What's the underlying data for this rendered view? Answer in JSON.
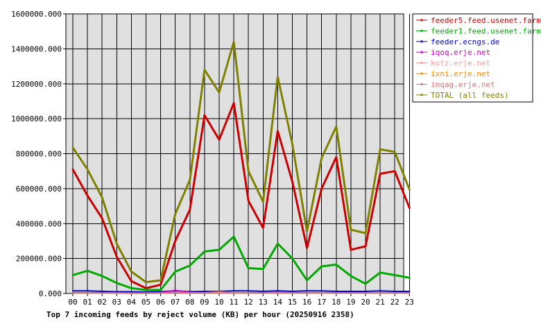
{
  "chart_data": {
    "type": "line",
    "title": "Top 7 incoming feeds by reject volume (KB) per hour (20250916 2358)",
    "xlabel": "",
    "ylabel": "",
    "categories": [
      "00",
      "01",
      "02",
      "03",
      "04",
      "05",
      "06",
      "07",
      "08",
      "09",
      "10",
      "11",
      "12",
      "13",
      "14",
      "15",
      "16",
      "17",
      "18",
      "19",
      "20",
      "21",
      "22",
      "23"
    ],
    "ylim": [
      0,
      1600000
    ],
    "yticks": [
      "0.000",
      "200000.000",
      "400000.000",
      "600000.000",
      "800000.000",
      "1000000.000",
      "1200000.000",
      "1400000.000",
      "1600000.000"
    ],
    "grid": true,
    "legend_position": "right",
    "background": "#e0e0e0",
    "series": [
      {
        "name": "feeder5.feed.usenet.farm",
        "color": "#cc0000",
        "values": [
          710000,
          560000,
          430000,
          210000,
          70000,
          30000,
          50000,
          300000,
          480000,
          1020000,
          880000,
          1090000,
          530000,
          375000,
          930000,
          640000,
          260000,
          600000,
          780000,
          250000,
          270000,
          685000,
          700000,
          490000
        ]
      },
      {
        "name": "feeder1.feed.usenet.farm",
        "color": "#00aa00",
        "values": [
          105000,
          130000,
          100000,
          60000,
          30000,
          20000,
          20000,
          125000,
          160000,
          240000,
          250000,
          325000,
          145000,
          140000,
          285000,
          200000,
          75000,
          155000,
          165000,
          100000,
          55000,
          120000,
          105000,
          90000
        ]
      },
      {
        "name": "feeder.ecngs.de",
        "color": "#0000cc",
        "values": [
          15000,
          15000,
          12000,
          10000,
          10000,
          8000,
          10000,
          15000,
          10000,
          12000,
          12000,
          15000,
          15000,
          12000,
          15000,
          12000,
          15000,
          15000,
          12000,
          12000,
          12000,
          15000,
          12000,
          12000
        ]
      },
      {
        "name": "iqoq.erje.net",
        "color": "#cc00cc",
        "values": [
          4000,
          4000,
          4000,
          4000,
          3000,
          3000,
          4000,
          18000,
          5000,
          4000,
          4000,
          4000,
          4000,
          4000,
          5000,
          4000,
          4000,
          4000,
          4000,
          4000,
          4000,
          4000,
          4000,
          4000
        ]
      },
      {
        "name": "kotz.erje.net",
        "color": "#ff9999",
        "values": [
          3000,
          3000,
          3000,
          3000,
          2000,
          2000,
          3000,
          5000,
          4000,
          4000,
          8000,
          4000,
          3000,
          3000,
          4000,
          3000,
          3000,
          3000,
          3000,
          3000,
          3000,
          3000,
          3000,
          3000
        ]
      },
      {
        "name": "ixni.erje.net",
        "color": "#ff8800",
        "values": [
          2000,
          2000,
          2000,
          2000,
          2000,
          2000,
          2000,
          3000,
          3000,
          3000,
          3000,
          3000,
          2000,
          2000,
          3000,
          2000,
          2000,
          2000,
          2000,
          2000,
          2000,
          2000,
          2000,
          2000
        ]
      },
      {
        "name": "imqag.erje.net",
        "color": "#cc7777",
        "values": [
          2000,
          2000,
          2000,
          2000,
          1000,
          1000,
          2000,
          3000,
          2000,
          3000,
          2000,
          2000,
          2000,
          2000,
          2000,
          2000,
          2000,
          2000,
          2000,
          2000,
          2000,
          2000,
          2000,
          2000
        ]
      },
      {
        "name": "TOTAL (all feeds)",
        "color": "#808000",
        "values": [
          835000,
          710000,
          550000,
          285000,
          125000,
          65000,
          75000,
          455000,
          650000,
          1280000,
          1150000,
          1440000,
          700000,
          525000,
          1240000,
          855000,
          355000,
          775000,
          955000,
          365000,
          345000,
          825000,
          810000,
          595000
        ]
      }
    ]
  }
}
